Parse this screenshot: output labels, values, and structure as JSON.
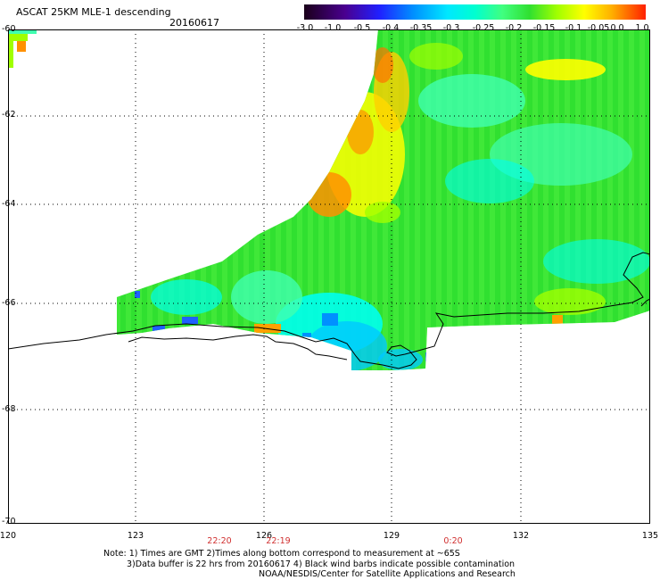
{
  "header": {
    "title": "ASCAT 25KM MLE-1 descending",
    "date": "20160617"
  },
  "colorbar": {
    "labels": [
      "-3.0",
      "-1.0",
      "-0.5",
      "-0.4",
      "-0.35",
      "-0.3",
      "-0.25",
      "-0.2",
      "-0.15",
      "-0.1",
      "-0.05",
      "0.0",
      "1.0"
    ],
    "colors": [
      "#1a001a",
      "#4a0080",
      "#2020ff",
      "#0080ff",
      "#00c8ff",
      "#00ffee",
      "#40ff90",
      "#30e030",
      "#a0ff00",
      "#ffff00",
      "#ffc000",
      "#ff7000",
      "#ff2000"
    ]
  },
  "map": {
    "lat_labels": [
      "-60",
      "-62",
      "-64",
      "-66",
      "-68",
      "-70"
    ],
    "lon_labels": [
      "120",
      "123",
      "126",
      "129",
      "132",
      "135"
    ],
    "time_labels": [
      "22:20",
      "22:19",
      "0:20"
    ]
  },
  "notes": {
    "line1": "Note: 1) Times are GMT 2)Times along bottom correspond to measurement at ~65S",
    "line2": "3)Data buffer is 22 hrs from 20160617 4) Black wind barbs indicate possible contamination",
    "line3": "NOAA/NESDIS/Center for Satellite Applications and Research"
  }
}
